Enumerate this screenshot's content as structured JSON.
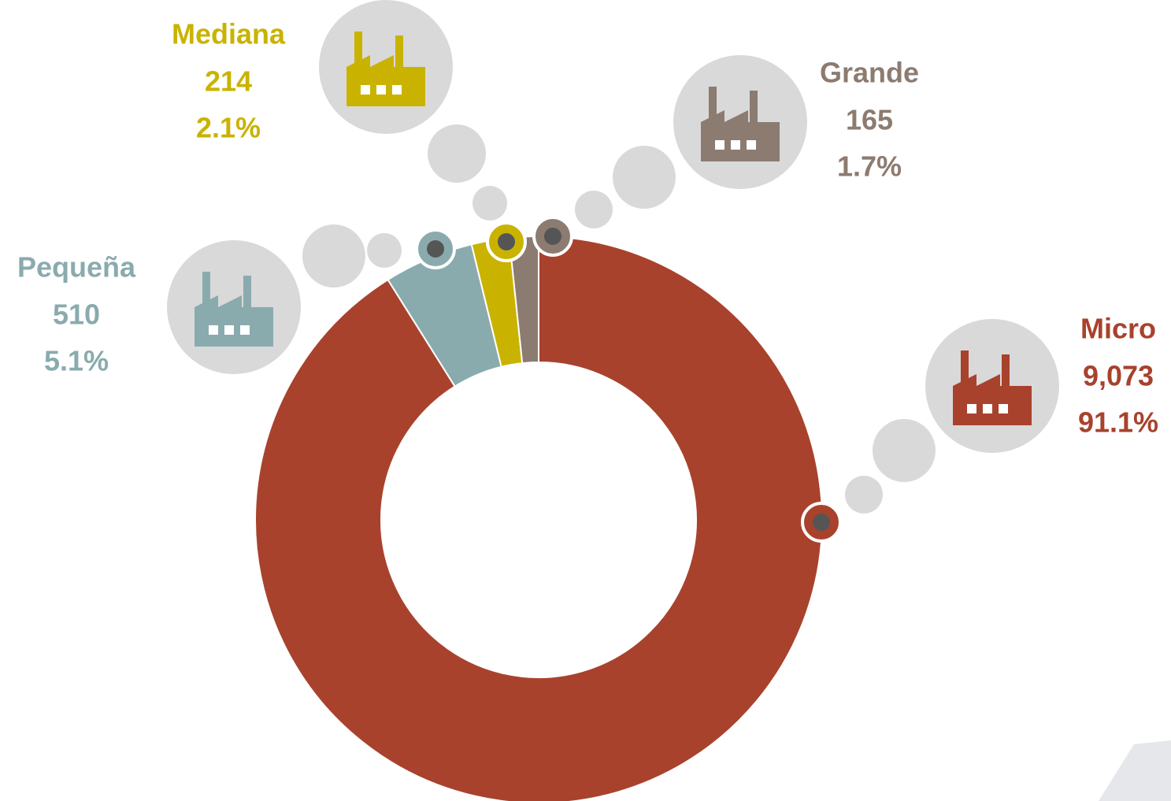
{
  "chart_data": {
    "type": "donut",
    "categories": [
      "Micro",
      "Pequeña",
      "Mediana",
      "Grande"
    ],
    "values": [
      9073,
      510,
      214,
      165
    ],
    "value_labels": [
      "9,073",
      "510",
      "214",
      "165"
    ],
    "percentages": [
      91.1,
      5.1,
      2.1,
      1.7
    ],
    "percentage_labels": [
      "91.1%",
      "5.1%",
      "2.1%",
      "1.7%"
    ],
    "colors": [
      "#a8422d",
      "#8aabae",
      "#c9b300",
      "#8c7b70"
    ]
  }
}
